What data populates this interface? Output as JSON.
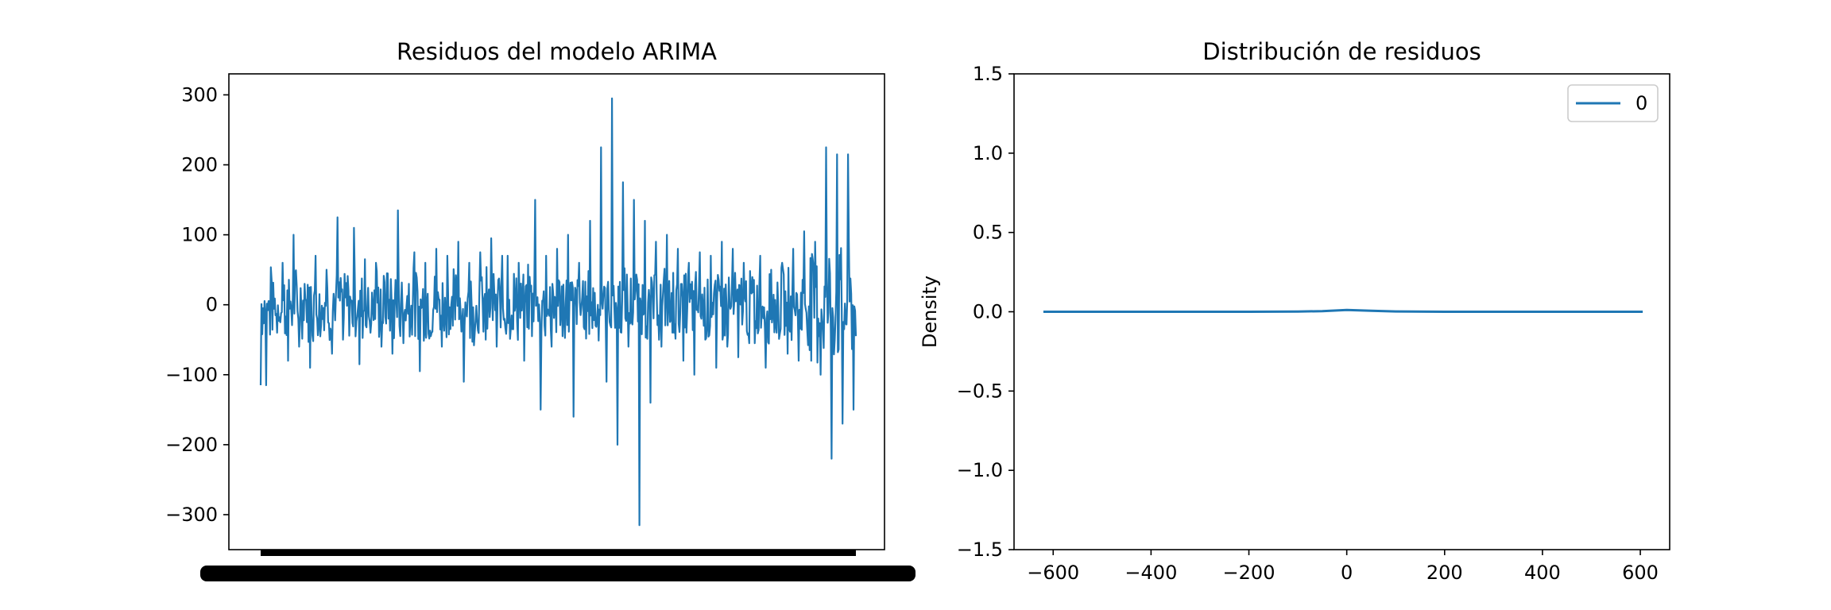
{
  "chart_data": [
    {
      "type": "line",
      "title": "Residuos del modelo ARIMA",
      "xlabel": "",
      "ylabel": "",
      "ylim": [
        -350,
        330
      ],
      "yticks": [
        300,
        200,
        100,
        0,
        -100,
        -200,
        -300
      ],
      "ytick_labels": [
        "300",
        "200",
        "100",
        "0",
        "−100",
        "−200",
        "−300"
      ],
      "xtick_labels": "dense overlapping date labels (illegible)",
      "grid": false,
      "legend": "none",
      "series": [
        {
          "color": "#1f77b4",
          "points": 760,
          "approx_values": [
            -115,
            35,
            -40,
            60,
            -80,
            100,
            -60,
            30,
            -90,
            70,
            -30,
            50,
            -70,
            125,
            -50,
            20,
            110,
            -85,
            65,
            -40,
            60,
            -60,
            45,
            -70,
            135,
            -55,
            30,
            75,
            -95,
            60,
            -45,
            80,
            -60,
            70,
            -30,
            90,
            -110,
            60,
            -40,
            75,
            -50,
            95,
            -60,
            70,
            -35,
            60,
            -80,
            40,
            150,
            -150,
            70,
            -60,
            80,
            -45,
            100,
            -160,
            60,
            -35,
            120,
            -30,
            225,
            -110,
            295,
            -200,
            175,
            -60,
            150,
            -315,
            120,
            -140,
            90,
            -60,
            100,
            -40,
            80,
            -80,
            60,
            -100,
            75,
            -50,
            70,
            -90,
            90,
            -60,
            80,
            -75,
            60,
            -55,
            70,
            -90,
            50,
            -40,
            60,
            -70,
            80,
            -80,
            105,
            -65,
            90,
            -100,
            225,
            -220,
            215,
            -170,
            215,
            -150,
            110
          ]
        }
      ]
    },
    {
      "type": "line",
      "title": "Distribución de residuos",
      "xlabel": "",
      "ylabel": "Density",
      "xlim": [
        -680,
        660
      ],
      "ylim": [
        -1.5,
        1.5
      ],
      "xticks": [
        -600,
        -400,
        -200,
        0,
        200,
        400,
        600
      ],
      "xtick_labels": [
        "−600",
        "−400",
        "−200",
        "0",
        "200",
        "400",
        "600"
      ],
      "yticks": [
        1.5,
        1.0,
        0.5,
        0.0,
        -0.5,
        -1.0,
        -1.5
      ],
      "ytick_labels": [
        "1.5",
        "1.0",
        "0.5",
        "0.0",
        "−0.5",
        "−1.0",
        "−1.5"
      ],
      "grid": false,
      "legend": "top-right",
      "series": [
        {
          "name": "0",
          "color": "#1f77b4",
          "x": [
            -620,
            -400,
            -200,
            -100,
            -50,
            0,
            50,
            100,
            200,
            400,
            605
          ],
          "y": [
            0,
            0,
            0,
            0.001,
            0.004,
            0.011,
            0.006,
            0.002,
            0,
            0,
            0
          ]
        }
      ]
    }
  ]
}
